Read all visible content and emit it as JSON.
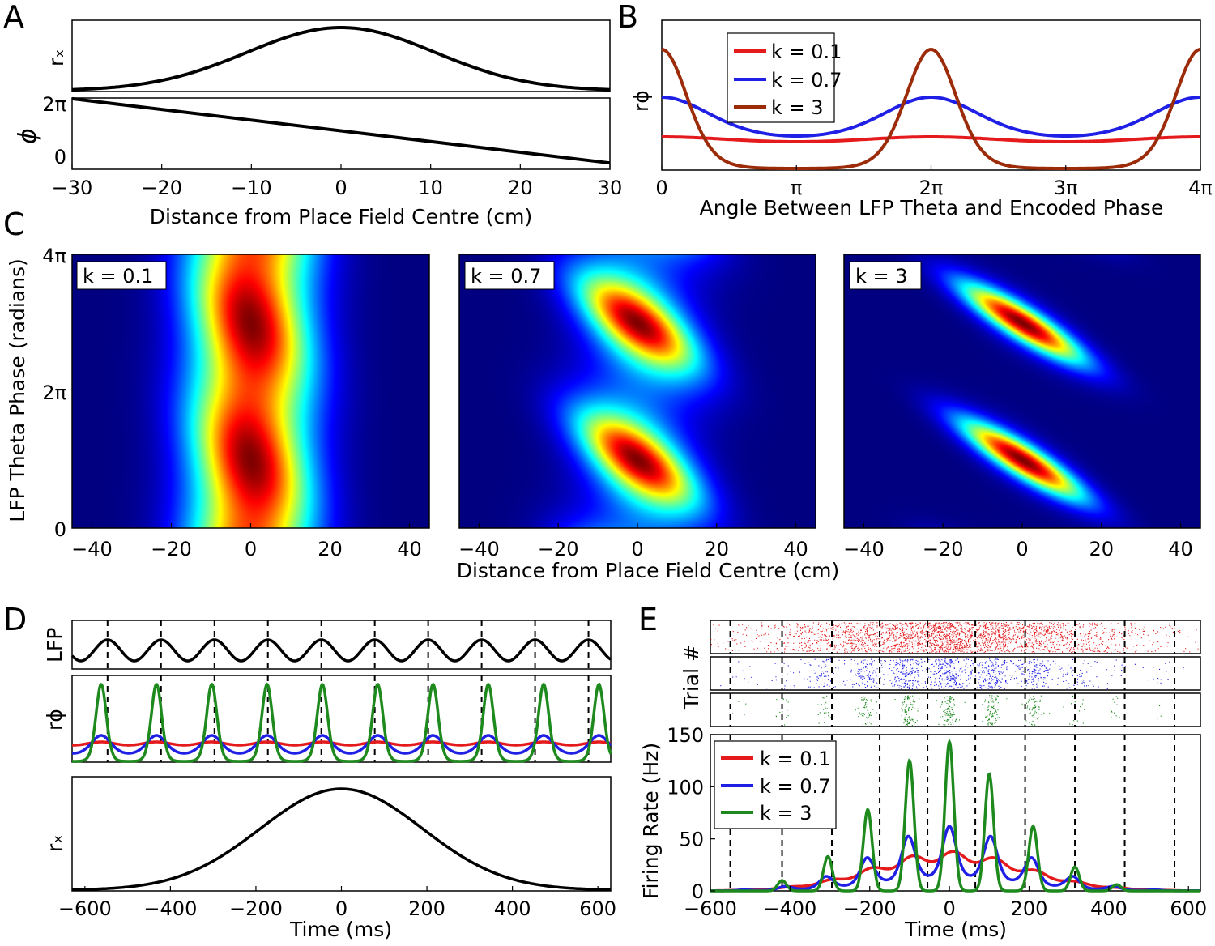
{
  "panel_letters": {
    "a": "A",
    "b": "B",
    "c": "C",
    "d": "D",
    "e": "E"
  },
  "colors": {
    "red": "#e41a1c",
    "blue": "#1f1fe6",
    "brown": "#9c2b0a",
    "green": "#1e8a1e",
    "black": "#000000",
    "heat_bg": "#00008f"
  },
  "chart_data": [
    {
      "id": "A-top",
      "type": "line",
      "ylabel": "rₓ",
      "xlim": [
        -30,
        30
      ],
      "series": [
        {
          "name": "rx",
          "formula": "gaussian",
          "center": 0,
          "sigma_cm": 10.5,
          "peak": 1
        }
      ]
    },
    {
      "id": "A-bottom",
      "type": "line",
      "ylabel": "ϕ",
      "xlabel": "Distance from Place Field Centre (cm)",
      "xlim": [
        -30,
        30
      ],
      "xticks": [
        -30,
        -20,
        -10,
        0,
        10,
        20,
        30
      ],
      "xtick_labels": [
        "−30",
        "−20",
        "−10",
        "0",
        "10",
        "20",
        "30"
      ],
      "ytick_labels": [
        "0",
        "2π"
      ],
      "series": [
        {
          "name": "phi",
          "x": [
            -30,
            30
          ],
          "y_over_pi": [
            2.3,
            -0.3
          ]
        }
      ]
    },
    {
      "id": "B",
      "type": "line",
      "ylabel": "rϕ",
      "xlabel": "Angle Between LFP Theta and Encoded Phase",
      "xlim_over_pi": [
        0,
        4
      ],
      "xtick_labels": [
        "0",
        "π",
        "2π",
        "3π",
        "4π"
      ],
      "legend": [
        "k = 0.1",
        "k = 0.7",
        "k = 3"
      ],
      "series": [
        {
          "name": "k = 0.1",
          "k": 0.1,
          "color": "#e41a1c"
        },
        {
          "name": "k = 0.7",
          "k": 0.7,
          "color": "#1f1fe6"
        },
        {
          "name": "k = 3",
          "k": 3,
          "color": "#9c2b0a"
        }
      ]
    },
    {
      "id": "C",
      "type": "heatmap",
      "xlabel": "Distance from Place Field Centre (cm)",
      "ylabel": "LFP Theta Phase (radians)",
      "xlim": [
        -45,
        45
      ],
      "xticks": [
        -40,
        -20,
        0,
        20,
        40
      ],
      "xtick_labels": [
        "−40",
        "−20",
        "0",
        "20",
        "40"
      ],
      "ytick_labels": [
        "0",
        "2π",
        "4π"
      ],
      "subplots": [
        {
          "label": "k = 0.1",
          "k": 0.1
        },
        {
          "label": "k = 0.7",
          "k": 0.7
        },
        {
          "label": "k = 3",
          "k": 3
        }
      ]
    },
    {
      "id": "D",
      "type": "line",
      "xlabel": "Time (ms)",
      "xlim": [
        -630,
        630
      ],
      "xticks": [
        -600,
        -400,
        -200,
        0,
        200,
        400,
        600
      ],
      "xtick_labels": [
        "−600",
        "−400",
        "−200",
        "0",
        "200",
        "400",
        "600"
      ],
      "theta_period_ms": 125,
      "subplots": [
        {
          "ylabel": "LFP",
          "series": [
            "LFP theta (black)"
          ]
        },
        {
          "ylabel": "rϕ",
          "series": [
            "k = 0.1",
            "k = 0.7",
            "k = 3"
          ]
        },
        {
          "ylabel": "rₓ",
          "series": [
            "rx (black)"
          ]
        }
      ],
      "dashed_line_times_ms": [
        -547,
        -422,
        -297,
        -172,
        -47,
        78,
        203,
        328,
        453,
        578
      ]
    },
    {
      "id": "E",
      "type": "line",
      "raster_ylabel": "Trial #",
      "ylabel": "Firing Rate (Hz)",
      "xlabel": "Time (ms)",
      "xlim": [
        -600,
        630
      ],
      "ylim": [
        0,
        150
      ],
      "xticks": [
        -600,
        -400,
        -200,
        0,
        200,
        400,
        600
      ],
      "xtick_labels": [
        "−600",
        "−400",
        "−200",
        "0",
        "200",
        "400",
        "600"
      ],
      "yticks": [
        0,
        50,
        100,
        150
      ],
      "ytick_labels": [
        "0",
        "50",
        "100",
        "150"
      ],
      "legend": [
        "k = 0.1",
        "k = 0.7",
        "k = 3"
      ],
      "dashed_line_times_ms": [
        -550,
        -420,
        -295,
        -175,
        -55,
        65,
        190,
        315,
        440,
        565
      ],
      "peaks": [
        {
          "name": "k = 0.1",
          "color": "#e41a1c",
          "peak_rate_hz": 38
        },
        {
          "name": "k = 0.7",
          "color": "#1f1fe6",
          "peak_rate_hz": 62
        },
        {
          "name": "k = 3",
          "color": "#1e8a1e",
          "peak_rate_hz": 143,
          "peak_times_ms": [
            -420,
            -305,
            -205,
            -100,
            0,
            100,
            210,
            315,
            420
          ],
          "peak_values_hz": [
            10,
            33,
            78,
            125,
            143,
            112,
            62,
            23,
            6
          ]
        }
      ]
    }
  ]
}
